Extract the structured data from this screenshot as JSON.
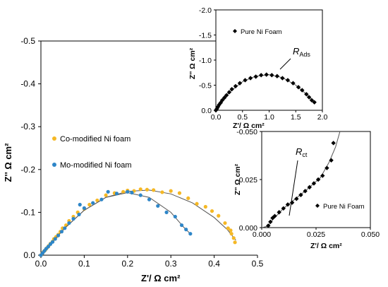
{
  "chart_data": [
    {
      "id": "main",
      "type": "scatter",
      "xlabel": "Z'/ Ω cm²",
      "ylabel": "Z'' Ω cm²",
      "xlim": [
        0,
        0.5
      ],
      "ylim": [
        0,
        -0.5
      ],
      "x_ticks": [
        "0.0",
        "0.1",
        "0.2",
        "0.3",
        "0.4",
        "0.5"
      ],
      "y_ticks": [
        "0.0",
        "-0.1",
        "-0.2",
        "-0.3",
        "-0.4",
        "-0.5"
      ],
      "legend_position": "middle-left",
      "series": [
        {
          "name": "Co-modified Ni foam",
          "color": "#f5b825",
          "marker": "circle",
          "points": [
            [
              0.0,
              0.0
            ],
            [
              0.003,
              -0.004
            ],
            [
              0.006,
              -0.008
            ],
            [
              0.01,
              -0.012
            ],
            [
              0.014,
              -0.017
            ],
            [
              0.018,
              -0.022
            ],
            [
              0.022,
              -0.027
            ],
            [
              0.027,
              -0.032
            ],
            [
              0.03,
              -0.038
            ],
            [
              0.035,
              -0.043
            ],
            [
              0.04,
              -0.048
            ],
            [
              0.045,
              -0.055
            ],
            [
              0.05,
              -0.063
            ],
            [
              0.058,
              -0.07
            ],
            [
              0.065,
              -0.08
            ],
            [
              0.075,
              -0.09
            ],
            [
              0.085,
              -0.1
            ],
            [
              0.1,
              -0.108
            ],
            [
              0.112,
              -0.118
            ],
            [
              0.13,
              -0.128
            ],
            [
              0.15,
              -0.14
            ],
            [
              0.17,
              -0.145
            ],
            [
              0.19,
              -0.148
            ],
            [
              0.2,
              -0.151
            ],
            [
              0.215,
              -0.15
            ],
            [
              0.23,
              -0.154
            ],
            [
              0.245,
              -0.153
            ],
            [
              0.26,
              -0.152
            ],
            [
              0.28,
              -0.147
            ],
            [
              0.3,
              -0.15
            ],
            [
              0.32,
              -0.145
            ],
            [
              0.34,
              -0.133
            ],
            [
              0.36,
              -0.12
            ],
            [
              0.38,
              -0.113
            ],
            [
              0.395,
              -0.103
            ],
            [
              0.41,
              -0.092
            ],
            [
              0.425,
              -0.075
            ],
            [
              0.432,
              -0.063
            ],
            [
              0.438,
              -0.058
            ],
            [
              0.44,
              -0.05
            ],
            [
              0.445,
              -0.04
            ],
            [
              0.448,
              -0.03
            ]
          ],
          "fit": [
            [
              0.0,
              0.0
            ],
            [
              0.02,
              -0.025
            ],
            [
              0.05,
              -0.058
            ],
            [
              0.1,
              -0.105
            ],
            [
              0.15,
              -0.135
            ],
            [
              0.2,
              -0.149
            ],
            [
              0.25,
              -0.152
            ],
            [
              0.3,
              -0.143
            ],
            [
              0.35,
              -0.122
            ],
            [
              0.4,
              -0.088
            ],
            [
              0.43,
              -0.06
            ],
            [
              0.45,
              -0.035
            ]
          ]
        },
        {
          "name": "Mo-modified Ni foam",
          "color": "#2e86c8",
          "marker": "circle",
          "points": [
            [
              0.0,
              0.0
            ],
            [
              0.004,
              -0.005
            ],
            [
              0.008,
              -0.01
            ],
            [
              0.012,
              -0.015
            ],
            [
              0.017,
              -0.02
            ],
            [
              0.022,
              -0.026
            ],
            [
              0.027,
              -0.031
            ],
            [
              0.033,
              -0.038
            ],
            [
              0.04,
              -0.046
            ],
            [
              0.048,
              -0.055
            ],
            [
              0.055,
              -0.063
            ],
            [
              0.065,
              -0.075
            ],
            [
              0.075,
              -0.085
            ],
            [
              0.088,
              -0.095
            ],
            [
              0.09,
              -0.118
            ],
            [
              0.1,
              -0.11
            ],
            [
              0.12,
              -0.122
            ],
            [
              0.14,
              -0.13
            ],
            [
              0.155,
              -0.148
            ],
            [
              0.175,
              -0.144
            ],
            [
              0.2,
              -0.148
            ],
            [
              0.21,
              -0.146
            ],
            [
              0.23,
              -0.14
            ],
            [
              0.25,
              -0.13
            ],
            [
              0.27,
              -0.115
            ],
            [
              0.29,
              -0.1
            ],
            [
              0.31,
              -0.09
            ],
            [
              0.325,
              -0.07
            ],
            [
              0.335,
              -0.06
            ],
            [
              0.345,
              -0.05
            ]
          ],
          "fit": [
            [
              0.0,
              0.0
            ],
            [
              0.03,
              -0.035
            ],
            [
              0.06,
              -0.068
            ],
            [
              0.1,
              -0.105
            ],
            [
              0.15,
              -0.135
            ],
            [
              0.2,
              -0.146
            ],
            [
              0.25,
              -0.135
            ],
            [
              0.3,
              -0.1
            ],
            [
              0.33,
              -0.065
            ],
            [
              0.345,
              -0.05
            ]
          ]
        }
      ]
    },
    {
      "id": "inset_top",
      "type": "scatter",
      "xlabel": "Z'/ Ω cm²",
      "ylabel": "Z'' Ω cm²",
      "xlim": [
        0,
        2.0
      ],
      "ylim": [
        0,
        -2.0
      ],
      "x_ticks": [
        "0.0",
        "0.5",
        "1.0",
        "1.5",
        "2.0"
      ],
      "y_ticks": [
        "0.0",
        "-0.5",
        "-1.0",
        "-1.5",
        "-2.0"
      ],
      "legend_position": "top-left",
      "annotation": {
        "text": "R",
        "subscript": "Ads"
      },
      "series": [
        {
          "name": "Pure Ni Foam",
          "color": "#000000",
          "marker": "diamond",
          "points": [
            [
              0.0,
              0.0
            ],
            [
              0.02,
              -0.03
            ],
            [
              0.04,
              -0.07
            ],
            [
              0.06,
              -0.11
            ],
            [
              0.09,
              -0.15
            ],
            [
              0.12,
              -0.2
            ],
            [
              0.16,
              -0.25
            ],
            [
              0.2,
              -0.3
            ],
            [
              0.25,
              -0.36
            ],
            [
              0.3,
              -0.42
            ],
            [
              0.37,
              -0.48
            ],
            [
              0.45,
              -0.54
            ],
            [
              0.55,
              -0.6
            ],
            [
              0.65,
              -0.64
            ],
            [
              0.75,
              -0.67
            ],
            [
              0.85,
              -0.7
            ],
            [
              0.95,
              -0.71
            ],
            [
              1.05,
              -0.7
            ],
            [
              1.15,
              -0.68
            ],
            [
              1.25,
              -0.64
            ],
            [
              1.35,
              -0.6
            ],
            [
              1.45,
              -0.54
            ],
            [
              1.55,
              -0.46
            ],
            [
              1.62,
              -0.4
            ],
            [
              1.7,
              -0.32
            ],
            [
              1.75,
              -0.26
            ],
            [
              1.8,
              -0.2
            ],
            [
              1.85,
              -0.16
            ]
          ],
          "fit": [
            [
              0.0,
              0.0
            ],
            [
              0.1,
              -0.17
            ],
            [
              0.25,
              -0.36
            ],
            [
              0.5,
              -0.57
            ],
            [
              0.75,
              -0.68
            ],
            [
              1.0,
              -0.71
            ],
            [
              1.25,
              -0.65
            ],
            [
              1.5,
              -0.5
            ],
            [
              1.7,
              -0.32
            ],
            [
              1.85,
              -0.16
            ]
          ]
        }
      ]
    },
    {
      "id": "inset_bottom",
      "type": "scatter",
      "xlabel": "Z'/ Ω cm²",
      "ylabel": "Z'' Ω cm²",
      "xlim": [
        0,
        0.05
      ],
      "ylim": [
        0,
        -0.05
      ],
      "x_ticks": [
        "0.000",
        "0.025",
        "0.050"
      ],
      "y_ticks": [
        "0.000",
        "-0.025",
        "-0.050"
      ],
      "legend_position": "bottom-right",
      "annotation": {
        "text": "R",
        "subscript": "ct"
      },
      "series": [
        {
          "name": "Pure Ni Foam",
          "color": "#000000",
          "marker": "diamond",
          "points": [
            [
              0.003,
              -0.001
            ],
            [
              0.004,
              -0.003
            ],
            [
              0.005,
              -0.005
            ],
            [
              0.006,
              -0.006
            ],
            [
              0.008,
              -0.008
            ],
            [
              0.01,
              -0.01
            ],
            [
              0.012,
              -0.012
            ],
            [
              0.014,
              -0.013
            ],
            [
              0.016,
              -0.015
            ],
            [
              0.018,
              -0.017
            ],
            [
              0.02,
              -0.019
            ],
            [
              0.022,
              -0.021
            ],
            [
              0.024,
              -0.023
            ],
            [
              0.026,
              -0.025
            ],
            [
              0.028,
              -0.027
            ],
            [
              0.03,
              -0.031
            ],
            [
              0.032,
              -0.035
            ],
            [
              0.033,
              -0.044
            ]
          ],
          "fit": [
            [
              0.0,
              0.0
            ],
            [
              0.003,
              -0.0008
            ],
            [
              0.005,
              -0.004
            ],
            [
              0.01,
              -0.01
            ],
            [
              0.02,
              -0.019
            ],
            [
              0.027,
              -0.026
            ],
            [
              0.031,
              -0.034
            ],
            [
              0.034,
              -0.042
            ],
            [
              0.036,
              -0.05
            ]
          ]
        }
      ]
    }
  ]
}
